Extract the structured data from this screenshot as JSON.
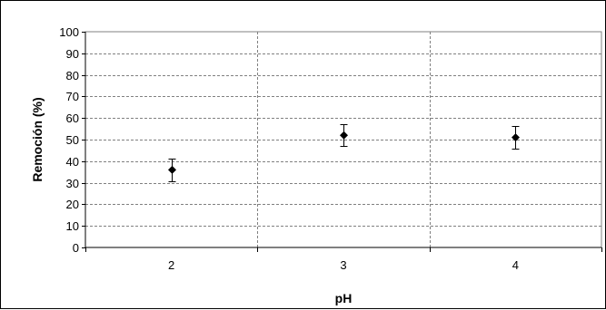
{
  "chart_data": {
    "type": "scatter",
    "title": "",
    "xlabel": "pH",
    "ylabel": "Remoción (%)",
    "categories": [
      "2",
      "3",
      "4"
    ],
    "series": [
      {
        "values": [
          36,
          52,
          51
        ],
        "error_low": [
          30.5,
          47,
          46
        ],
        "error_high": [
          41,
          57,
          56.5
        ]
      }
    ],
    "ylim": [
      0,
      100
    ],
    "yticks": [
      "0",
      "10",
      "20",
      "30",
      "40",
      "50",
      "60",
      "70",
      "80",
      "90",
      "100"
    ],
    "grid": true,
    "legend": "none",
    "marker": "diamond",
    "colors": {
      "marker": "#000000",
      "grid": "#808080",
      "axis": "#000000",
      "plot_background": "#ffffff"
    }
  }
}
